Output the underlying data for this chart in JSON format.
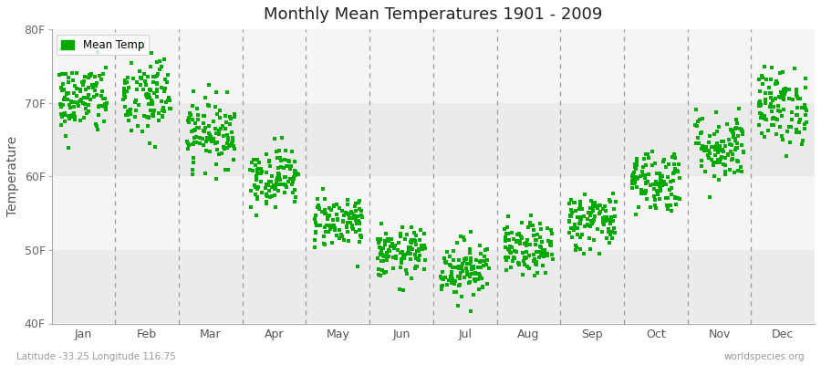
{
  "title": "Monthly Mean Temperatures 1901 - 2009",
  "ylabel": "Temperature",
  "xlabel": "",
  "ylim": [
    40,
    80
  ],
  "yticks": [
    40,
    50,
    60,
    70,
    80
  ],
  "ytick_labels": [
    "40F",
    "50F",
    "60F",
    "70F",
    "80F"
  ],
  "months": [
    "Jan",
    "Feb",
    "Mar",
    "Apr",
    "May",
    "Jun",
    "Jul",
    "Aug",
    "Sep",
    "Oct",
    "Nov",
    "Dec"
  ],
  "dot_color": "#00aa00",
  "bg_color": "#f0f0f0",
  "band_colors_h": [
    "#ebebeb",
    "#f5f5f5"
  ],
  "legend_label": "Mean Temp",
  "caption_left": "Latitude -33.25 Longitude 116.75",
  "caption_right": "worldspecies.org",
  "n_years": 109,
  "seed": 42,
  "monthly_means_F": [
    70.5,
    70.8,
    66.0,
    60.0,
    54.0,
    49.5,
    47.5,
    50.0,
    54.0,
    59.5,
    64.0,
    69.5
  ],
  "monthly_stds_F": [
    2.5,
    3.2,
    2.3,
    2.0,
    1.8,
    1.7,
    2.0,
    1.8,
    2.0,
    2.2,
    2.4,
    2.6
  ]
}
